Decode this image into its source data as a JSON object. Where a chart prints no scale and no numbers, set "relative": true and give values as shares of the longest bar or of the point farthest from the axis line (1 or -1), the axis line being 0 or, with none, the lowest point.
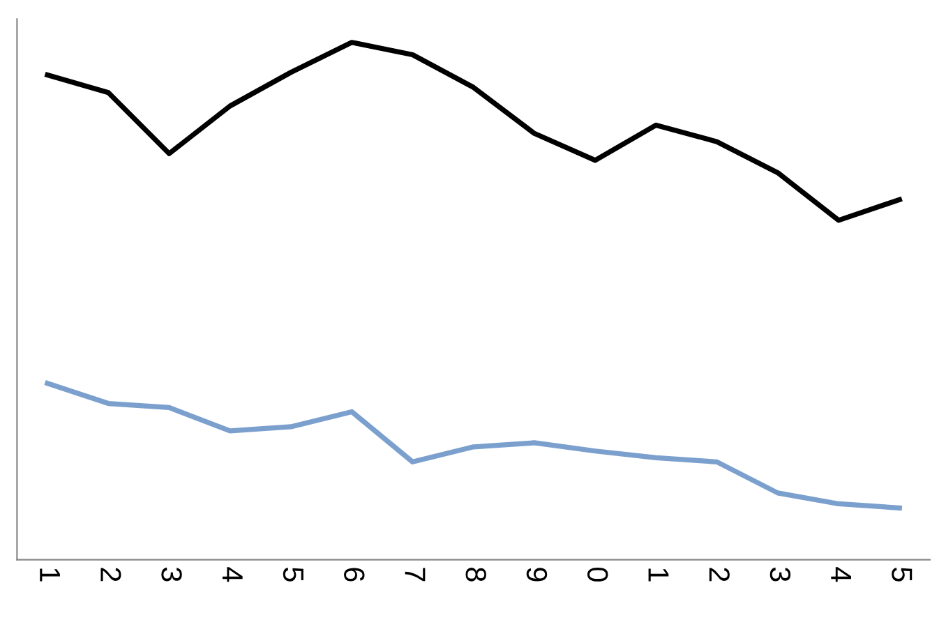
{
  "chart_data": {
    "type": "line",
    "relative": true,
    "categories": [
      "1",
      "2",
      "3",
      "4",
      "5",
      "6",
      "7",
      "8",
      "9",
      "0",
      "1",
      "2",
      "3",
      "4",
      "5"
    ],
    "series": [
      {
        "color": "#000000",
        "values": [
          0.937,
          0.903,
          0.785,
          0.877,
          0.942,
          1.0,
          0.976,
          0.913,
          0.824,
          0.772,
          0.84,
          0.808,
          0.748,
          0.656,
          0.696
        ]
      },
      {
        "color": "#7ba0cd",
        "values": [
          0.341,
          0.302,
          0.294,
          0.249,
          0.257,
          0.286,
          0.189,
          0.218,
          0.226,
          0.21,
          0.197,
          0.189,
          0.129,
          0.108,
          0.1
        ]
      }
    ],
    "grid": false,
    "legend": false,
    "marker": "none",
    "line_style": "solid"
  }
}
